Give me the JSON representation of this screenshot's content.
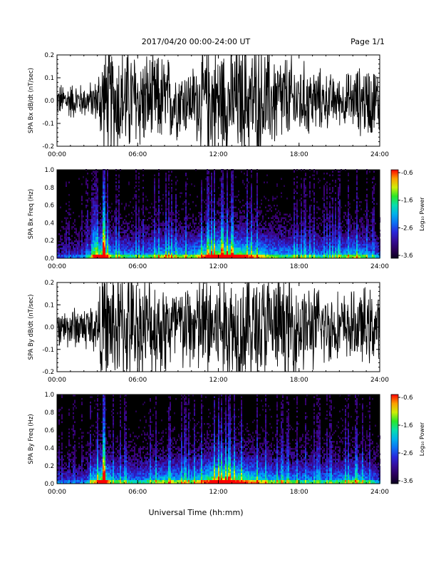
{
  "header": {
    "title": "2017/04/20  00:00-24:00 UT",
    "page": "Page 1/1"
  },
  "footer": {
    "xlabel": "Universal Time (hh:mm)"
  },
  "chart_data": [
    {
      "type": "line",
      "ylabel": "SPA Bx dB/dt (nT/sec)",
      "x_ticks": [
        "00:00",
        "06:00",
        "12:00",
        "18:00",
        "24:00"
      ],
      "y_ticks": [
        "-0.2",
        "-0.1",
        "0.0",
        "0.1",
        "0.2"
      ],
      "xlim": [
        0,
        24
      ],
      "ylim": [
        -0.2,
        0.2
      ],
      "x_unit": "hours UT",
      "series": [
        {
          "x": [
            0,
            1,
            2,
            3,
            3.3,
            4,
            5,
            6,
            7,
            8,
            9,
            10,
            11,
            12,
            13,
            14,
            15,
            16,
            17,
            18,
            19,
            20,
            21,
            22,
            23,
            24
          ],
          "amplitude": [
            0.07,
            0.08,
            0.07,
            0.09,
            0.25,
            0.25,
            0.25,
            0.22,
            0.2,
            0.2,
            0.16,
            0.14,
            0.25,
            0.25,
            0.25,
            0.25,
            0.25,
            0.22,
            0.2,
            0.17,
            0.15,
            0.12,
            0.1,
            0.13,
            0.16,
            0.14
          ]
        }
      ]
    },
    {
      "type": "heatmap",
      "ylabel": "SPA Bx Freq (Hz)",
      "x_ticks": [
        "00:00",
        "06:00",
        "12:00",
        "18:00",
        "24:00"
      ],
      "y_ticks": [
        "0.0",
        "0.2",
        "0.4",
        "0.6",
        "0.8",
        "1.0"
      ],
      "xlim": [
        0,
        24
      ],
      "ylim": [
        0,
        1
      ],
      "colorbar": {
        "label": "Log₁₀ Power",
        "ticks": [
          "-0.6",
          "-1.6",
          "-2.6",
          "-3.6"
        ],
        "range": [
          -3.6,
          -0.6
        ]
      },
      "activity": [
        {
          "x": 0,
          "level": 0.25
        },
        {
          "x": 2,
          "level": 0.3
        },
        {
          "x": 3.4,
          "level": 0.95
        },
        {
          "x": 4,
          "level": 0.55
        },
        {
          "x": 6,
          "level": 0.45
        },
        {
          "x": 8,
          "level": 0.6
        },
        {
          "x": 10,
          "level": 0.55
        },
        {
          "x": 11.5,
          "level": 0.85
        },
        {
          "x": 12,
          "level": 0.9
        },
        {
          "x": 13,
          "level": 0.85
        },
        {
          "x": 14,
          "level": 0.75
        },
        {
          "x": 16,
          "level": 0.55
        },
        {
          "x": 18,
          "level": 0.5
        },
        {
          "x": 20,
          "level": 0.45
        },
        {
          "x": 22.3,
          "level": 0.6
        },
        {
          "x": 24,
          "level": 0.35
        }
      ]
    },
    {
      "type": "line",
      "ylabel": "SPA By dB/dt (nT/sec)",
      "x_ticks": [
        "00:00",
        "06:00",
        "12:00",
        "18:00",
        "24:00"
      ],
      "y_ticks": [
        "-0.2",
        "-0.1",
        "0.0",
        "0.1",
        "0.2"
      ],
      "xlim": [
        0,
        24
      ],
      "ylim": [
        -0.2,
        0.2
      ],
      "x_unit": "hours UT",
      "series": [
        {
          "x": [
            0,
            1,
            2,
            3,
            3.3,
            4,
            5,
            6,
            7,
            8,
            9,
            10,
            11,
            12,
            13,
            14,
            15,
            16,
            17,
            18,
            19,
            20,
            21,
            22,
            23,
            24
          ],
          "amplitude": [
            0.08,
            0.09,
            0.1,
            0.12,
            0.25,
            0.25,
            0.25,
            0.24,
            0.22,
            0.22,
            0.2,
            0.2,
            0.25,
            0.25,
            0.25,
            0.25,
            0.25,
            0.24,
            0.22,
            0.2,
            0.18,
            0.17,
            0.15,
            0.15,
            0.17,
            0.14
          ]
        }
      ]
    },
    {
      "type": "heatmap",
      "ylabel": "SPA By Freq (Hz)",
      "x_ticks": [
        "00:00",
        "06:00",
        "12:00",
        "18:00",
        "24:00"
      ],
      "y_ticks": [
        "0.0",
        "0.2",
        "0.4",
        "0.6",
        "0.8",
        "1.0"
      ],
      "xlim": [
        0,
        24
      ],
      "ylim": [
        0,
        1
      ],
      "colorbar": {
        "label": "Log₁₀ Power",
        "ticks": [
          "-0.6",
          "-1.6",
          "-2.6",
          "-3.6"
        ],
        "range": [
          -3.6,
          -0.6
        ]
      },
      "activity": [
        {
          "x": 0,
          "level": 0.28
        },
        {
          "x": 2,
          "level": 0.3
        },
        {
          "x": 3.4,
          "level": 0.95
        },
        {
          "x": 4,
          "level": 0.55
        },
        {
          "x": 6,
          "level": 0.45
        },
        {
          "x": 8,
          "level": 0.6
        },
        {
          "x": 10,
          "level": 0.55
        },
        {
          "x": 11.5,
          "level": 0.85
        },
        {
          "x": 12,
          "level": 0.9
        },
        {
          "x": 13,
          "level": 0.85
        },
        {
          "x": 14,
          "level": 0.75
        },
        {
          "x": 16,
          "level": 0.55
        },
        {
          "x": 18,
          "level": 0.5
        },
        {
          "x": 20,
          "level": 0.45
        },
        {
          "x": 22.3,
          "level": 0.6
        },
        {
          "x": 24,
          "level": 0.35
        }
      ]
    }
  ]
}
